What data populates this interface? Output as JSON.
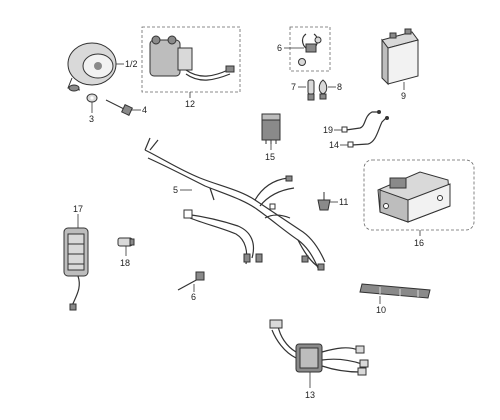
{
  "colors": {
    "line": "#333333",
    "part_fill": "#d9d9d9",
    "part_dark": "#8a8a8a",
    "background": "#ffffff"
  },
  "labels": {
    "horn": "1/2",
    "bolt_washer": "3",
    "bolt": "4",
    "main_harness": "5",
    "bulb_socket": "6",
    "bulb_front": "7",
    "bulb_rear": "8",
    "battery": "9",
    "grip_bar": "10",
    "small_connector": "11",
    "starter_relay": "12",
    "cdi_harness": "13",
    "cable_14": "14",
    "flasher_relay": "15",
    "battery_tray": "16",
    "regulator": "17",
    "fuse": "18",
    "cable_19": "19",
    "connector_6b": "6"
  }
}
